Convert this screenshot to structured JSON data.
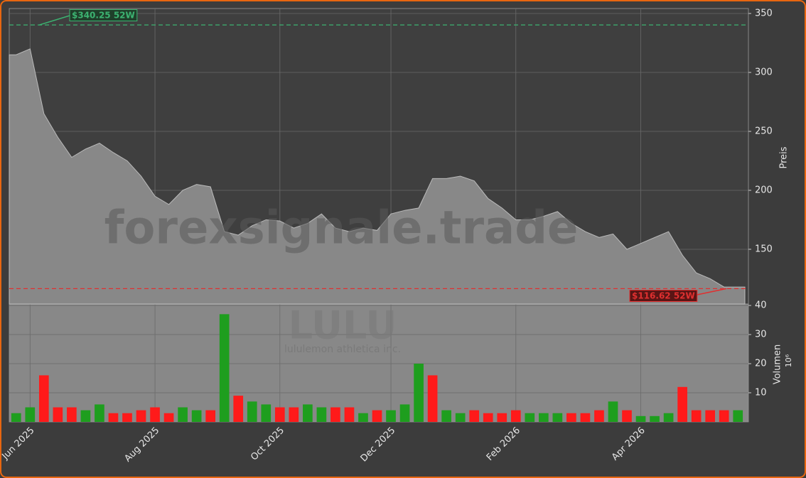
{
  "chart_data": [
    {
      "type": "area",
      "watermark": "forexsignale.trade",
      "y_label": "Preis",
      "categories": [
        null,
        "Jun 2025",
        null,
        null,
        null,
        null,
        null,
        null,
        null,
        null,
        "Aug 2025",
        null,
        null,
        null,
        null,
        null,
        null,
        null,
        null,
        "Oct 2025",
        null,
        null,
        null,
        null,
        null,
        null,
        null,
        "Dec 2025",
        null,
        null,
        null,
        null,
        null,
        null,
        null,
        null,
        "Feb 2026",
        null,
        null,
        null,
        null,
        null,
        null,
        null,
        null,
        "Apr 2026",
        null,
        null,
        null,
        null,
        null,
        null,
        null
      ],
      "series": [
        {
          "color": "#888888",
          "values": [
            315,
            320,
            265,
            245,
            228,
            235,
            240,
            232,
            225,
            212,
            195,
            188,
            200,
            205,
            203,
            165,
            162,
            170,
            175,
            174,
            168,
            172,
            180,
            168,
            165,
            168,
            166,
            180,
            183,
            185,
            210,
            210,
            212,
            208,
            193,
            185,
            175,
            175,
            178,
            182,
            172,
            165,
            160,
            163,
            150,
            155,
            160,
            165,
            145,
            130,
            125,
            118,
            118
          ]
        }
      ],
      "reference_lines": [
        {
          "value": 340.25,
          "label": "$340.25 52W",
          "color": "#3cb371"
        },
        {
          "value": 116.62,
          "label": "$116.62 52W",
          "color": "#e03030"
        }
      ],
      "ylim": [
        103.6,
        354.2
      ],
      "yticks": [
        150,
        200,
        250,
        300,
        350
      ],
      "grid": true
    },
    {
      "type": "bar",
      "symbol": "LULU",
      "company": "lululemon athletica inc.",
      "y_label": "Volumen",
      "y_unit": "10⁶",
      "series": [
        {
          "values": [
            3,
            5,
            16,
            5,
            5,
            4,
            6,
            3,
            3,
            4,
            5,
            3,
            5,
            4,
            4,
            37,
            9,
            7,
            6,
            5,
            5,
            6,
            5,
            5,
            5,
            3,
            4,
            4,
            6,
            20,
            16,
            4,
            3,
            4,
            3,
            3,
            4,
            3,
            3,
            3,
            3,
            3,
            4,
            7,
            4,
            2,
            2,
            3,
            12,
            4,
            4,
            4,
            4
          ],
          "colors": [
            "#1e9e1e",
            "#1e9e1e",
            "#ff1a1a",
            "#ff1a1a",
            "#ff1a1a",
            "#1e9e1e",
            "#1e9e1e",
            "#ff1a1a",
            "#ff1a1a",
            "#ff1a1a",
            "#ff1a1a",
            "#ff1a1a",
            "#1e9e1e",
            "#1e9e1e",
            "#ff1a1a",
            "#1e9e1e",
            "#ff1a1a",
            "#1e9e1e",
            "#1e9e1e",
            "#ff1a1a",
            "#ff1a1a",
            "#1e9e1e",
            "#1e9e1e",
            "#ff1a1a",
            "#ff1a1a",
            "#1e9e1e",
            "#ff1a1a",
            "#1e9e1e",
            "#1e9e1e",
            "#1e9e1e",
            "#ff1a1a",
            "#1e9e1e",
            "#1e9e1e",
            "#ff1a1a",
            "#ff1a1a",
            "#ff1a1a",
            "#ff1a1a",
            "#1e9e1e",
            "#1e9e1e",
            "#1e9e1e",
            "#ff1a1a",
            "#ff1a1a",
            "#ff1a1a",
            "#1e9e1e",
            "#ff1a1a",
            "#1e9e1e",
            "#1e9e1e",
            "#1e9e1e",
            "#ff1a1a",
            "#ff1a1a",
            "#ff1a1a",
            "#ff1a1a",
            "#1e9e1e"
          ]
        }
      ],
      "ylim": [
        0,
        40.5
      ],
      "yticks": [
        10,
        20,
        30,
        40
      ],
      "grid": true
    }
  ]
}
